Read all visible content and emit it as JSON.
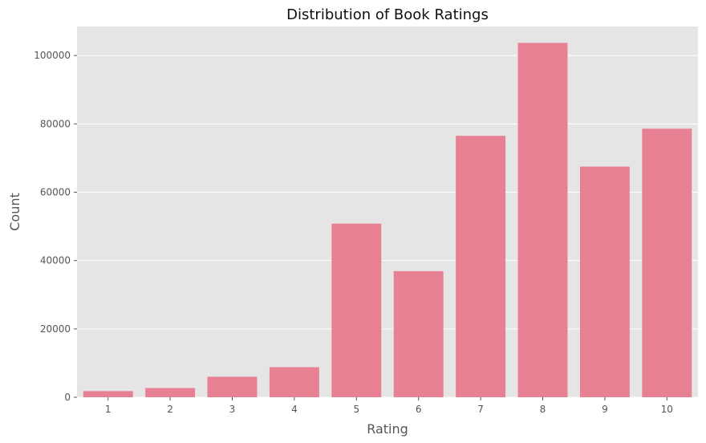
{
  "chart_data": {
    "type": "bar",
    "title": "Distribution of Book Ratings",
    "xlabel": "Rating",
    "ylabel": "Count",
    "categories": [
      "1",
      "2",
      "3",
      "4",
      "5",
      "6",
      "7",
      "8",
      "9",
      "10"
    ],
    "values": [
      1800,
      2700,
      6000,
      8800,
      50800,
      36900,
      76500,
      103700,
      67500,
      78600
    ],
    "ylim": [
      0,
      108500
    ],
    "yticks": [
      0,
      20000,
      40000,
      60000,
      80000,
      100000
    ],
    "ytick_labels": [
      "0",
      "20000",
      "40000",
      "60000",
      "80000",
      "100000"
    ],
    "grid": true,
    "colors": {
      "bar": "#e88093",
      "plot_background": "#e5e5e5",
      "grid": "#ffffff",
      "text": "#555555"
    }
  }
}
